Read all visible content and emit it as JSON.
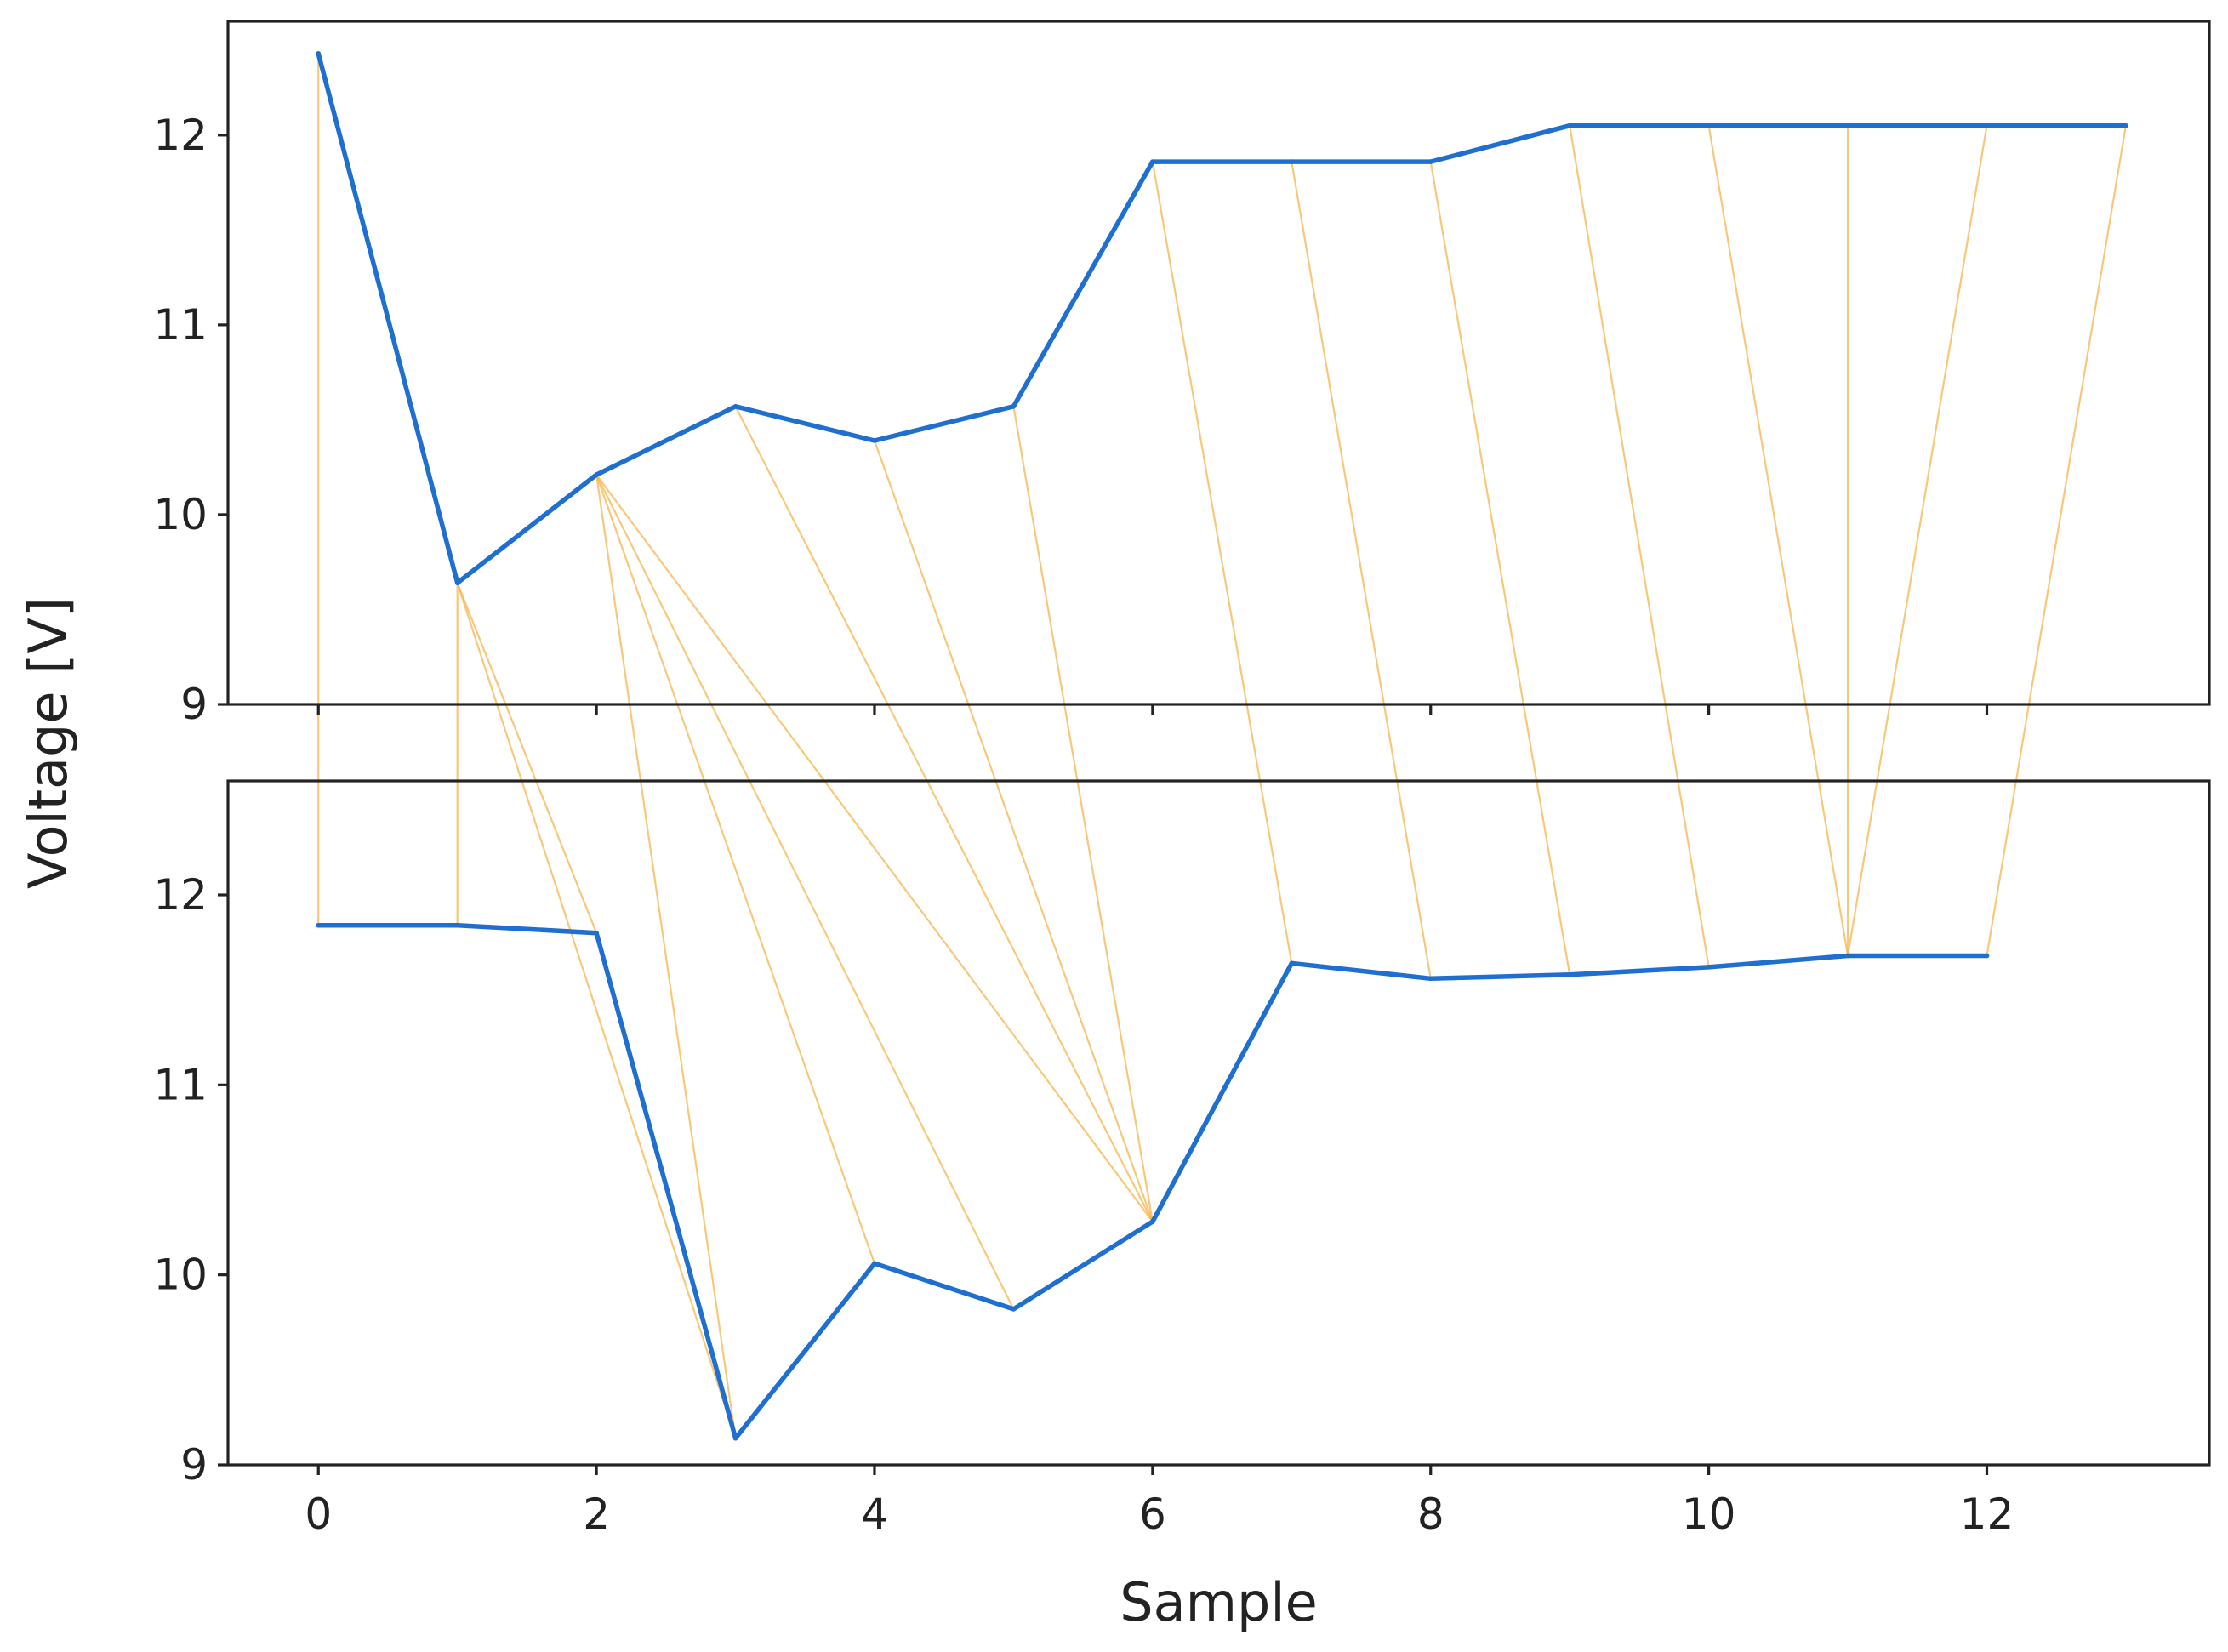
{
  "chart_data": {
    "type": "line",
    "xlabel": "Sample",
    "ylabel": "Voltage [V]",
    "xlim": [
      -0.65,
      13.6
    ],
    "xticks": [
      0,
      2,
      4,
      6,
      8,
      10,
      12
    ],
    "grid": false,
    "legend": "none",
    "colors": {
      "series": "#1f6fd1",
      "alignment": "#f5b54e"
    },
    "panels": [
      {
        "name": "",
        "ylim": [
          9,
          12.6
        ],
        "yticks": [
          9,
          10,
          11,
          12
        ],
        "x": [
          0,
          1,
          2,
          3,
          4,
          5,
          6,
          7,
          8,
          9,
          10,
          11,
          12,
          13
        ],
        "values": [
          12.43,
          9.64,
          10.21,
          10.57,
          10.39,
          10.57,
          11.86,
          11.86,
          11.86,
          12.05,
          12.05,
          12.05,
          12.05,
          12.05
        ]
      },
      {
        "name": "",
        "ylim": [
          9,
          12.6
        ],
        "yticks": [
          9,
          10,
          11,
          12
        ],
        "x": [
          0,
          1,
          2,
          3,
          4,
          5,
          6,
          7,
          8,
          9,
          10,
          11,
          12
        ],
        "values": [
          11.84,
          11.84,
          11.8,
          9.14,
          10.06,
          9.82,
          10.28,
          11.64,
          11.56,
          11.58,
          11.62,
          11.68,
          11.68
        ]
      }
    ],
    "alignment_pairs": [
      [
        0,
        0
      ],
      [
        1,
        1
      ],
      [
        1,
        2
      ],
      [
        1,
        3
      ],
      [
        2,
        3
      ],
      [
        2,
        4
      ],
      [
        2,
        5
      ],
      [
        2,
        6
      ],
      [
        3,
        6
      ],
      [
        4,
        6
      ],
      [
        5,
        6
      ],
      [
        6,
        7
      ],
      [
        7,
        8
      ],
      [
        8,
        9
      ],
      [
        9,
        10
      ],
      [
        10,
        11
      ],
      [
        11,
        11
      ],
      [
        12,
        11
      ],
      [
        13,
        12
      ]
    ]
  }
}
